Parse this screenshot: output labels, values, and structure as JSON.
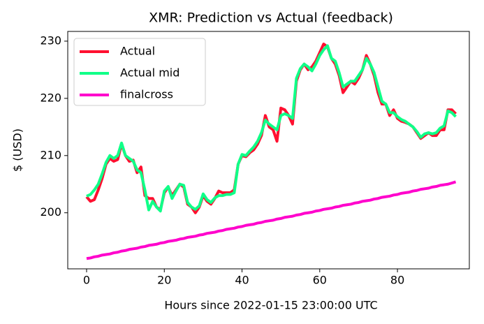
{
  "chart_data": {
    "type": "line",
    "title": "XMR: Prediction vs Actual (feedback)",
    "xlabel": "Hours since 2022-01-15 23:00:00 UTC",
    "ylabel": "$ (USD)",
    "x": [
      0,
      1,
      2,
      3,
      4,
      5,
      6,
      7,
      8,
      9,
      10,
      11,
      12,
      13,
      14,
      15,
      16,
      17,
      18,
      19,
      20,
      21,
      22,
      23,
      24,
      25,
      26,
      27,
      28,
      29,
      30,
      31,
      32,
      33,
      34,
      35,
      36,
      37,
      38,
      39,
      40,
      41,
      42,
      43,
      44,
      45,
      46,
      47,
      48,
      49,
      50,
      51,
      52,
      53,
      54,
      55,
      56,
      57,
      58,
      59,
      60,
      61,
      62,
      63,
      64,
      65,
      66,
      67,
      68,
      69,
      70,
      71,
      72,
      73,
      74,
      75,
      76,
      77,
      78,
      79,
      80,
      81,
      82,
      83,
      84,
      85,
      86,
      87,
      88,
      89,
      90,
      91,
      92,
      93,
      94,
      95
    ],
    "series": [
      {
        "name": "Actual",
        "color": "#ff1030",
        "values": [
          202.8,
          202.0,
          202.3,
          204.0,
          206.0,
          208.5,
          209.5,
          209.0,
          209.3,
          212.0,
          210.0,
          209.0,
          209.2,
          207.0,
          208.0,
          203.0,
          202.5,
          202.5,
          201.0,
          200.5,
          203.5,
          204.5,
          203.0,
          204.0,
          205.0,
          204.5,
          201.5,
          201.0,
          200.0,
          201.0,
          203.0,
          202.0,
          201.5,
          202.5,
          203.8,
          203.5,
          203.5,
          203.5,
          204.0,
          208.5,
          210.0,
          209.8,
          210.5,
          211.0,
          212.0,
          213.5,
          217.0,
          215.0,
          214.5,
          212.5,
          218.3,
          218.0,
          217.0,
          215.5,
          223.0,
          225.0,
          226.0,
          225.0,
          225.5,
          226.5,
          228.0,
          229.5,
          229.0,
          227.0,
          226.0,
          224.0,
          221.0,
          222.0,
          223.0,
          222.5,
          223.5,
          225.0,
          227.5,
          226.0,
          224.0,
          221.0,
          219.0,
          219.0,
          217.0,
          218.0,
          216.5,
          216.0,
          215.8,
          215.5,
          215.0,
          214.0,
          213.0,
          213.5,
          214.0,
          213.5,
          213.5,
          214.5,
          214.5,
          218.0,
          218.0,
          217.3
        ]
      },
      {
        "name": "Actual mid",
        "color": "#10ff88",
        "values": [
          202.9,
          203.2,
          204.0,
          205.0,
          206.8,
          208.8,
          210.0,
          209.5,
          210.0,
          212.2,
          210.0,
          209.5,
          209.0,
          207.5,
          207.0,
          204.0,
          200.5,
          202.0,
          201.0,
          200.3,
          203.8,
          204.6,
          202.5,
          203.8,
          205.0,
          204.8,
          201.8,
          201.0,
          200.6,
          201.2,
          203.3,
          202.3,
          201.8,
          202.6,
          203.0,
          203.0,
          203.2,
          203.2,
          203.5,
          208.5,
          210.2,
          210.0,
          210.8,
          211.5,
          212.5,
          214.0,
          216.2,
          215.5,
          215.0,
          214.5,
          217.0,
          217.3,
          217.0,
          216.5,
          223.5,
          225.2,
          226.0,
          225.5,
          224.8,
          226.0,
          227.5,
          228.5,
          229.2,
          227.0,
          226.5,
          224.5,
          222.0,
          222.5,
          223.0,
          223.0,
          224.0,
          225.0,
          227.0,
          226.0,
          224.5,
          222.0,
          219.5,
          219.0,
          217.5,
          217.5,
          216.8,
          216.3,
          216.0,
          215.5,
          215.0,
          214.2,
          213.2,
          213.8,
          214.0,
          213.8,
          214.0,
          214.8,
          215.2,
          217.8,
          217.5,
          216.8
        ]
      },
      {
        "name": "finalcross",
        "color": "#ff00cc",
        "values": [
          192.0,
          192.1,
          192.3,
          192.4,
          192.6,
          192.7,
          192.8,
          193.0,
          193.1,
          193.3,
          193.4,
          193.6,
          193.7,
          193.8,
          194.0,
          194.1,
          194.3,
          194.4,
          194.5,
          194.7,
          194.8,
          195.0,
          195.1,
          195.2,
          195.4,
          195.5,
          195.7,
          195.8,
          195.9,
          196.1,
          196.2,
          196.4,
          196.5,
          196.6,
          196.8,
          196.9,
          197.1,
          197.2,
          197.3,
          197.5,
          197.6,
          197.8,
          197.9,
          198.0,
          198.2,
          198.3,
          198.5,
          198.6,
          198.7,
          198.9,
          199.0,
          199.2,
          199.3,
          199.4,
          199.6,
          199.7,
          199.9,
          200.0,
          200.1,
          200.3,
          200.4,
          200.6,
          200.7,
          200.8,
          201.0,
          201.1,
          201.3,
          201.4,
          201.5,
          201.7,
          201.8,
          202.0,
          202.1,
          202.2,
          202.4,
          202.5,
          202.7,
          202.8,
          202.9,
          203.1,
          203.2,
          203.4,
          203.5,
          203.6,
          203.8,
          203.9,
          204.1,
          204.2,
          204.3,
          204.5,
          204.6,
          204.8,
          204.9,
          205.0,
          205.2,
          205.4
        ]
      }
    ],
    "xlim": [
      -4.85,
      98.5
    ],
    "ylim": [
      190.2,
      231.7
    ],
    "xticks": [
      0,
      20,
      40,
      60,
      80
    ],
    "yticks": [
      200,
      210,
      220,
      230
    ],
    "legend": "upper left"
  }
}
